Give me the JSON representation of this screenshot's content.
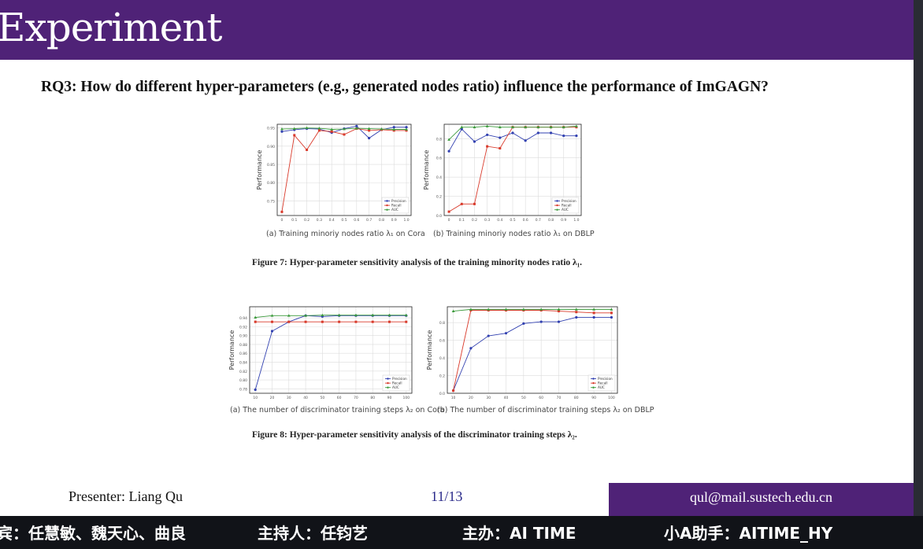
{
  "slide": {
    "title": "Experiment",
    "question": "RQ3: How do different hyper-parameters (e.g., generated nodes ratio) influence the performance of ImGAGN?",
    "figure7_caption": "Figure 7: Hyper-parameter sensitivity analysis of the training minority nodes ratio λ₁.",
    "figure8_caption": "Figure 8: Hyper-parameter sensitivity analysis of the discriminator training steps λ₂."
  },
  "footer": {
    "presenter": "Presenter: Liang Qu",
    "page": "11/13",
    "email": "qul@mail.sustech.edu.cn"
  },
  "ticker": {
    "guests": "宾：任慧敏、魏天心、曲良",
    "host": "主持人：任钧艺",
    "organizer": "主办：AI TIME",
    "assistant": "小A助手：AITIME_HY"
  },
  "chart_data": [
    {
      "type": "line",
      "panel_label": "(a) Training minoriy nodes ratio λ₁ on Cora",
      "ylabel": "Performance",
      "x": [
        0,
        0.1,
        0.2,
        0.3,
        0.4,
        0.5,
        0.6,
        0.7,
        0.8,
        0.9,
        1.0
      ],
      "xticks": [
        "0",
        "0.1",
        "0.2",
        "0.3",
        "0.4",
        "0.5",
        "0.6",
        "0.7",
        "0.8",
        "0.9",
        "1.0"
      ],
      "ylim": [
        0.71,
        0.96
      ],
      "yticks": [
        0.75,
        0.8,
        0.85,
        0.9,
        0.95
      ],
      "ytick_labels": [
        "0.75",
        "0.80",
        "0.85",
        "0.90",
        "0.95"
      ],
      "grid": true,
      "legend": "bottom-right",
      "series": [
        {
          "name": "Precision",
          "color": "#3140b0",
          "marker": "circle",
          "values": [
            0.94,
            0.945,
            0.948,
            0.947,
            0.937,
            0.948,
            0.955,
            0.922,
            0.945,
            0.952,
            0.952
          ]
        },
        {
          "name": "Recall",
          "color": "#d93a2b",
          "marker": "square",
          "values": [
            0.72,
            0.93,
            0.89,
            0.943,
            0.94,
            0.932,
            0.948,
            0.943,
            0.945,
            0.943,
            0.943
          ]
        },
        {
          "name": "AUC",
          "color": "#3c9a3c",
          "marker": "triangle",
          "values": [
            0.947,
            0.948,
            0.95,
            0.949,
            0.946,
            0.947,
            0.949,
            0.948,
            0.947,
            0.946,
            0.946
          ]
        }
      ]
    },
    {
      "type": "line",
      "panel_label": "(b) Training minoriy nodes ratio λ₁ on DBLP",
      "ylabel": "Performance",
      "x": [
        0,
        0.1,
        0.2,
        0.3,
        0.4,
        0.5,
        0.6,
        0.7,
        0.8,
        0.9,
        1.0
      ],
      "xticks": [
        "0",
        "0.1",
        "0.2",
        "0.3",
        "0.4",
        "0.5",
        "0.6",
        "0.7",
        "0.8",
        "0.9",
        "1.0"
      ],
      "ylim": [
        0,
        0.95
      ],
      "yticks": [
        0,
        0.2,
        0.4,
        0.6,
        0.8
      ],
      "ytick_labels": [
        "0.0",
        "0.2",
        "0.4",
        "0.6",
        "0.8"
      ],
      "grid": true,
      "legend": "bottom-right",
      "series": [
        {
          "name": "Precision",
          "color": "#3140b0",
          "marker": "circle",
          "values": [
            0.67,
            0.9,
            0.77,
            0.84,
            0.81,
            0.86,
            0.78,
            0.86,
            0.86,
            0.83,
            0.83
          ]
        },
        {
          "name": "Recall",
          "color": "#d93a2b",
          "marker": "square",
          "values": [
            0.04,
            0.12,
            0.12,
            0.72,
            0.7,
            0.92,
            0.92,
            0.92,
            0.92,
            0.92,
            0.92
          ]
        },
        {
          "name": "AUC",
          "color": "#3c9a3c",
          "marker": "triangle",
          "values": [
            0.79,
            0.92,
            0.92,
            0.93,
            0.92,
            0.92,
            0.92,
            0.92,
            0.92,
            0.92,
            0.93
          ]
        }
      ]
    },
    {
      "type": "line",
      "panel_label": "(a) The number of discriminator training steps λ₂ on Cora",
      "ylabel": "Performance",
      "x": [
        10,
        20,
        30,
        40,
        50,
        60,
        70,
        80,
        90,
        100
      ],
      "xticks": [
        "10",
        "20",
        "30",
        "40",
        "50",
        "60",
        "70",
        "80",
        "90",
        "100"
      ],
      "ylim": [
        0.77,
        0.965
      ],
      "yticks": [
        0.78,
        0.8,
        0.82,
        0.84,
        0.86,
        0.88,
        0.9,
        0.92,
        0.94
      ],
      "ytick_labels": [
        "0.78",
        "0.80",
        "0.82",
        "0.84",
        "0.86",
        "0.88",
        "0.90",
        "0.92",
        "0.94"
      ],
      "grid": true,
      "legend": "bottom-right",
      "series": [
        {
          "name": "Precision",
          "color": "#3140b0",
          "marker": "circle",
          "values": [
            0.778,
            0.91,
            0.931,
            0.945,
            0.943,
            0.945,
            0.945,
            0.945,
            0.945,
            0.945
          ]
        },
        {
          "name": "Recall",
          "color": "#d93a2b",
          "marker": "square",
          "values": [
            0.931,
            0.931,
            0.931,
            0.931,
            0.931,
            0.931,
            0.931,
            0.931,
            0.931,
            0.931
          ]
        },
        {
          "name": "AUC",
          "color": "#3c9a3c",
          "marker": "triangle",
          "values": [
            0.941,
            0.945,
            0.945,
            0.945,
            0.946,
            0.946,
            0.946,
            0.946,
            0.946,
            0.946
          ]
        }
      ]
    },
    {
      "type": "line",
      "panel_label": "(b) The number of discriminator training steps λ₂ on DBLP",
      "ylabel": "Performance",
      "x": [
        10,
        20,
        30,
        40,
        50,
        60,
        70,
        80,
        90,
        100
      ],
      "xticks": [
        "10",
        "20",
        "30",
        "40",
        "50",
        "60",
        "70",
        "80",
        "90",
        "100"
      ],
      "ylim": [
        0,
        0.98
      ],
      "yticks": [
        0,
        0.2,
        0.4,
        0.6,
        0.8
      ],
      "ytick_labels": [
        "0.0",
        "0.2",
        "0.4",
        "0.6",
        "0.8"
      ],
      "grid": true,
      "legend": "bottom-right",
      "series": [
        {
          "name": "Precision",
          "color": "#3140b0",
          "marker": "circle",
          "values": [
            0.03,
            0.51,
            0.65,
            0.68,
            0.79,
            0.81,
            0.81,
            0.86,
            0.86,
            0.86
          ]
        },
        {
          "name": "Recall",
          "color": "#d93a2b",
          "marker": "square",
          "values": [
            0.03,
            0.94,
            0.94,
            0.94,
            0.94,
            0.94,
            0.93,
            0.92,
            0.91,
            0.91
          ]
        },
        {
          "name": "AUC",
          "color": "#3c9a3c",
          "marker": "triangle",
          "values": [
            0.93,
            0.95,
            0.95,
            0.95,
            0.95,
            0.95,
            0.95,
            0.95,
            0.95,
            0.95
          ]
        }
      ]
    }
  ]
}
